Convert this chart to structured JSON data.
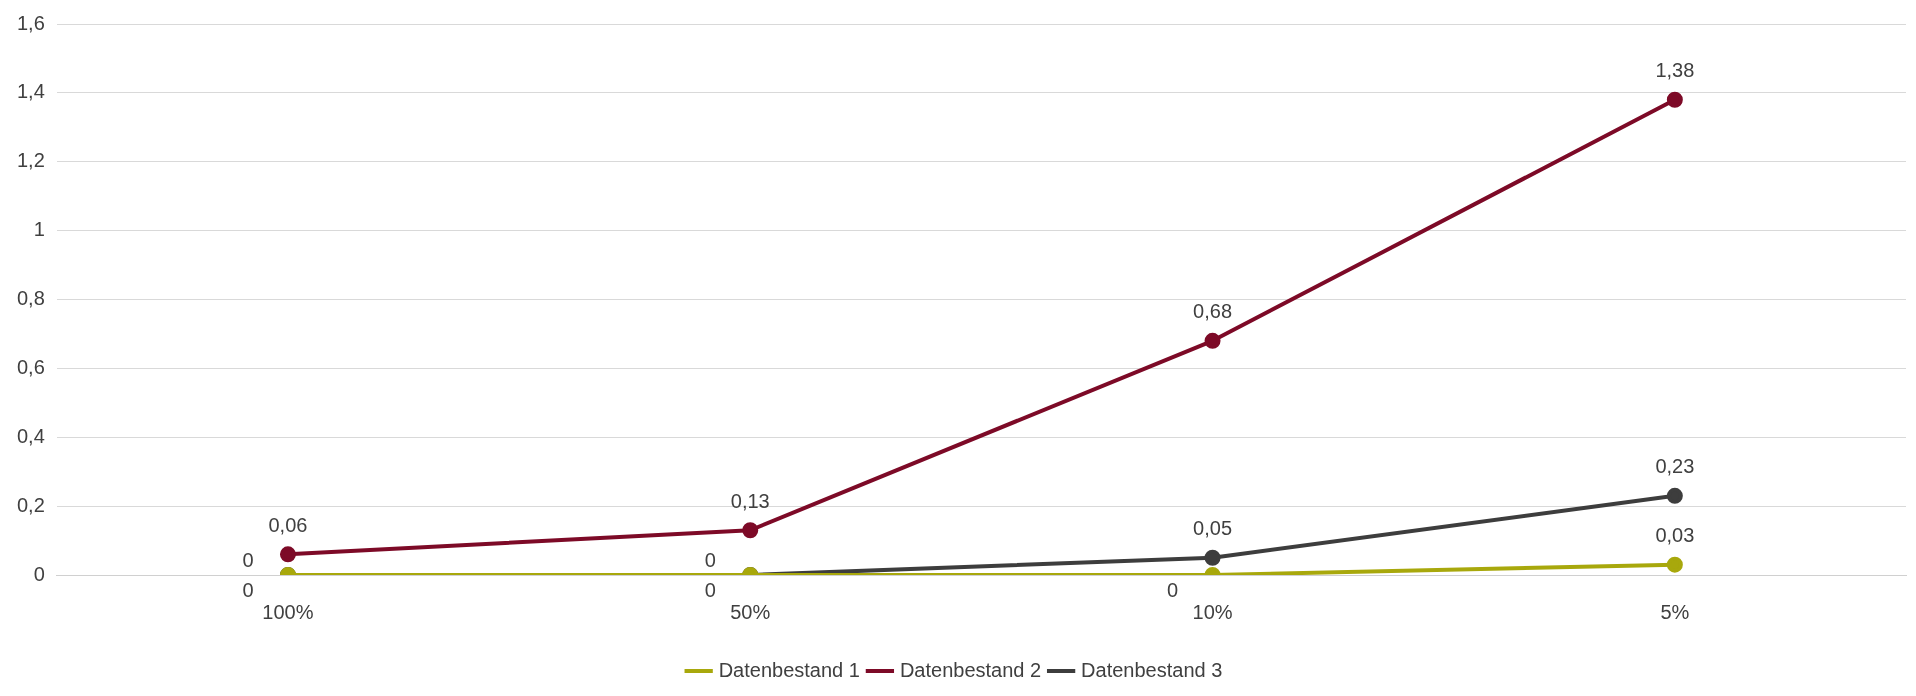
{
  "chart_data": {
    "type": "line",
    "categories": [
      "100%",
      "50%",
      "10%",
      "5%"
    ],
    "series": [
      {
        "name": "Datenbestand 1",
        "color": "#a8a80c",
        "values": [
          0,
          0,
          0,
          0.03
        ],
        "value_labels": [
          "0",
          "0",
          "0",
          "0,03"
        ]
      },
      {
        "name": "Datenbestand 2",
        "color": "#7d0a27",
        "values": [
          0.06,
          0.13,
          0.68,
          1.38
        ],
        "value_labels": [
          "0,06",
          "0,13",
          "0,68",
          "1,38"
        ]
      },
      {
        "name": "Datenbestand 3",
        "color": "#3d3d3d",
        "values": [
          0,
          0,
          0.05,
          0.23
        ],
        "value_labels": [
          "0",
          "0",
          "0,05",
          "0,23"
        ]
      }
    ],
    "ylim": [
      0,
      1.6
    ],
    "yticks": [
      0,
      {
        "value": 0.2,
        "label": "0,2"
      },
      {
        "value": 0.4,
        "label": "0,4"
      },
      {
        "value": 0.6,
        "label": "0,6"
      },
      {
        "value": 0.8,
        "label": "0,8"
      },
      1,
      {
        "value": 1.2,
        "label": "1,2"
      },
      {
        "value": 1.4,
        "label": "1,4"
      },
      {
        "value": 1.6,
        "label": "1,6"
      }
    ],
    "grid": "y",
    "legend": "bottom",
    "marker": "circle",
    "line_style": "solid"
  }
}
